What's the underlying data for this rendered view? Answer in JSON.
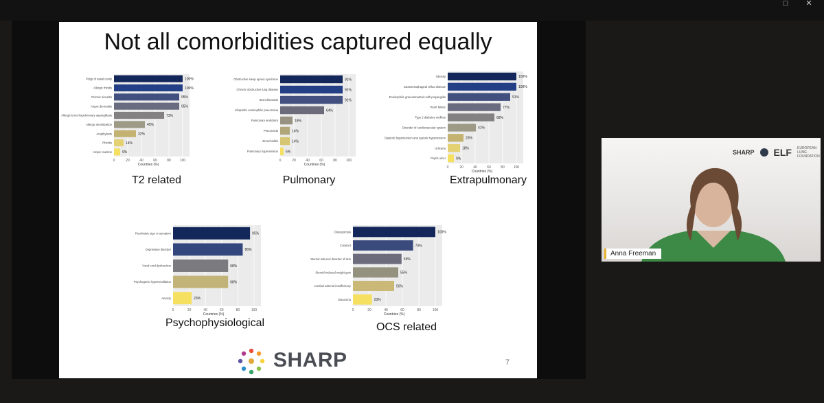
{
  "slide": {
    "title": "Not all comorbidities captured equally",
    "page_number": "7",
    "logo_text": "SHARP"
  },
  "participant": {
    "name": "Anna Freeman",
    "logo_sharp": "SHARP",
    "logo_elf": "ELF",
    "logo_elf_sub": "EUROPEAN LUNG FOUNDATION"
  },
  "colors": {
    "accent": "#e6b32f"
  },
  "chart_data": [
    {
      "type": "bar",
      "orientation": "horizontal",
      "caption": "T2 related",
      "xlabel": "Countries (%)",
      "xlim": [
        0,
        100
      ],
      "ticks": [
        "0",
        "20",
        "40",
        "60",
        "80",
        "100"
      ],
      "categories": [
        "Polyp of nasal cavity",
        "Allergic rhinitis",
        "Chronic sinusitis",
        "Atopic dermatitis",
        "Allergic bronchopulmonary aspergillosis",
        "Allergic sensitization",
        "Anaphylaxis",
        "Rhinitis",
        "Atopic reaction"
      ],
      "values": [
        100,
        100,
        95,
        95,
        73,
        45,
        32,
        14,
        9
      ],
      "labels": [
        "100%",
        "100%",
        "95%",
        "95%",
        "73%",
        "45%",
        "32%",
        "14%",
        "9%"
      ],
      "colors": [
        "#13275a",
        "#233f86",
        "#41507f",
        "#696b7e",
        "#838181",
        "#9d9a86",
        "#c4b370",
        "#e4d172",
        "#f5e062"
      ]
    },
    {
      "type": "bar",
      "orientation": "horizontal",
      "caption": "Pulmonary",
      "xlabel": "Countries (%)",
      "xlim": [
        0,
        100
      ],
      "ticks": [
        "0",
        "20",
        "40",
        "60",
        "80",
        "100"
      ],
      "categories": [
        "Obstructive sleep apnea syndrome",
        "Chronic obstructive lung disease",
        "Bronchiectasis",
        "Idiopathic eosinophilic pneumonia",
        "Pulmonary embolism",
        "Pneumonia",
        "Bronchiolitis",
        "Pulmonary hypertension"
      ],
      "values": [
        91,
        91,
        91,
        64,
        18,
        14,
        14,
        5
      ],
      "labels": [
        "91%",
        "91%",
        "91%",
        "64%",
        "18%",
        "14%",
        "14%",
        "5%"
      ],
      "colors": [
        "#13275a",
        "#233f86",
        "#41507f",
        "#6b6b7b",
        "#979282",
        "#b0a679",
        "#d6c572",
        "#f5e062"
      ]
    },
    {
      "type": "bar",
      "orientation": "horizontal",
      "caption": "Extrapulmonary",
      "xlabel": "Countries (%)",
      "xlim": [
        0,
        100
      ],
      "ticks": [
        "0",
        "20",
        "40",
        "60",
        "80",
        "100"
      ],
      "categories": [
        "Obesity",
        "Gastroesophageal reflux disease",
        "Eosinophilic granulomatosis with polyangiitis",
        "Heart failure",
        "Type 2 diabetes mellitus",
        "Disorder of cardiovascular system",
        "Diastolic hypertension and systolic hypertension",
        "Urticaria",
        "Peptic ulcer"
      ],
      "values": [
        100,
        100,
        91,
        77,
        68,
        41,
        23,
        18,
        9
      ],
      "labels": [
        "100%",
        "100%",
        "91%",
        "77%",
        "68%",
        "41%",
        "23%",
        "18%",
        "9%"
      ],
      "colors": [
        "#13275a",
        "#233f86",
        "#41507f",
        "#696b7e",
        "#838181",
        "#9d9a86",
        "#c4b370",
        "#e4d172",
        "#f5e062"
      ]
    },
    {
      "type": "bar",
      "orientation": "horizontal",
      "caption": "Psychophysiological",
      "xlabel": "Countries (%)",
      "xlim": [
        0,
        100
      ],
      "ticks": [
        "0",
        "20",
        "40",
        "60",
        "80",
        "100"
      ],
      "categories": [
        "Psychiatric sign or symptom",
        "Depressive disorder",
        "Vocal cord dysfunction",
        "Psychogenic hyperventilation",
        "Anxiety"
      ],
      "values": [
        95,
        86,
        68,
        68,
        23
      ],
      "labels": [
        "95%",
        "86%",
        "68%",
        "68%",
        "23%"
      ],
      "colors": [
        "#13275a",
        "#34467e",
        "#7b7a7e",
        "#c2b478",
        "#f5e062"
      ]
    },
    {
      "type": "bar",
      "orientation": "horizontal",
      "caption": "OCS related",
      "xlabel": "Countries (%)",
      "xlim": [
        0,
        100
      ],
      "ticks": [
        "0",
        "20",
        "40",
        "60",
        "80",
        "100"
      ],
      "categories": [
        "Osteoporosis",
        "Cataract",
        "Steroid-induced disorder of skin",
        "Steroid-induced weight gain",
        "Cortisol adrenal insufficiency",
        "Glaucoma"
      ],
      "values": [
        100,
        73,
        59,
        55,
        50,
        23
      ],
      "labels": [
        "100%",
        "73%",
        "59%",
        "55%",
        "50%",
        "23%"
      ],
      "colors": [
        "#13275a",
        "#3b4a7d",
        "#6d6c7c",
        "#95917f",
        "#c9b876",
        "#f5e062"
      ]
    }
  ]
}
